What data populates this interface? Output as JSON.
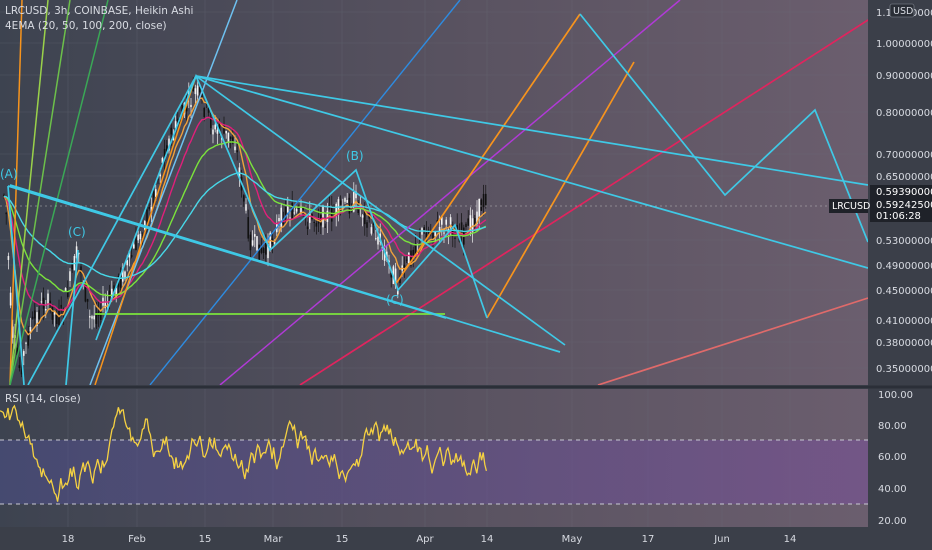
{
  "header": {
    "symbol_line": "LRCUSD, 3h, COINBASE, Heikin Ashi",
    "indicator_line": "4EMA (20, 50, 100, 200, close)",
    "currency_badge": "USD"
  },
  "price_scale": {
    "ticks": [
      "1.10000000",
      "1.00000000",
      "0.90000000",
      "0.80000000",
      "0.70000000",
      "0.65000000",
      "0.53000000",
      "0.49000000",
      "0.45000000",
      "0.41000000",
      "0.38000000",
      "0.35000000"
    ],
    "last_high_label": "0.59390000",
    "last_price_label": "0.59242500",
    "countdown_label": "01:06:28",
    "symbol_tag": "LRCUSD"
  },
  "rsi_panel": {
    "title": "RSI (14, close)",
    "ticks": [
      "100.00",
      "80.00",
      "60.00",
      "40.00",
      "20.00"
    ]
  },
  "time_axis": {
    "labels": [
      "18",
      "Feb",
      "15",
      "Mar",
      "15",
      "Apr",
      "14",
      "May",
      "17",
      "Jun",
      "14"
    ]
  },
  "wave_labels": {
    "a": "(A)",
    "b": "(B)",
    "c_left": "(C)",
    "c_low": "(C)"
  },
  "colors": {
    "background": "#454a55",
    "cyan_lines": "#3fc9e6",
    "orange_lines": "#f7941d",
    "magenta_line": "#b03ad6",
    "red_line": "#e0245e",
    "salmon_line": "#e06a6a",
    "rsi_line": "#f5d142",
    "ema_green": "#7be33c",
    "ema_pink": "#e0207a",
    "ema_orange": "#f0a13c",
    "ema_cyan": "#47d8e8"
  },
  "chart_data": {
    "type": "candlestick with drawings",
    "title": "LRCUSD, 3h, COINBASE, Heikin Ashi",
    "price_ylim": [
      0.33,
      1.12
    ],
    "price_scale": "log",
    "last_price": 0.592425,
    "last_high": 0.5939,
    "rsi_ylim": [
      18,
      100
    ],
    "rsi_levels": [
      70,
      30
    ],
    "x_tick_labels": [
      "18",
      "Feb",
      "15",
      "Mar",
      "15",
      "Apr",
      "14",
      "May",
      "17",
      "Jun",
      "14"
    ],
    "wave_points": [
      {
        "label": "(A)",
        "price": 0.62
      },
      {
        "label": "(B)",
        "price": 0.65
      },
      {
        "label": "(C)",
        "price": 0.52
      },
      {
        "label": "(C)",
        "price": 0.44
      }
    ]
  }
}
